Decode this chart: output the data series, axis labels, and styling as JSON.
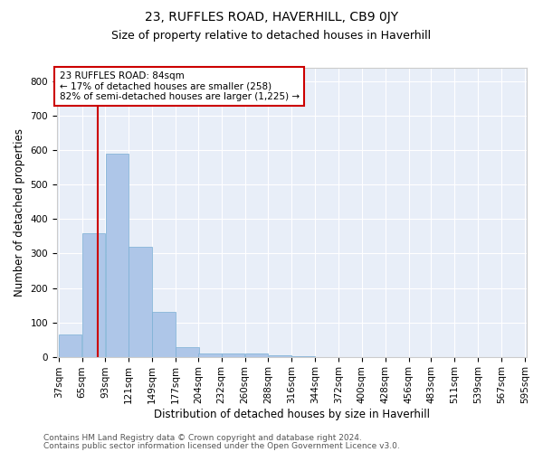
{
  "title1": "23, RUFFLES ROAD, HAVERHILL, CB9 0JY",
  "title2": "Size of property relative to detached houses in Haverhill",
  "xlabel": "Distribution of detached houses by size in Haverhill",
  "ylabel": "Number of detached properties",
  "footer1": "Contains HM Land Registry data © Crown copyright and database right 2024.",
  "footer2": "Contains public sector information licensed under the Open Government Licence v3.0.",
  "annotation_line1": "23 RUFFLES ROAD: 84sqm",
  "annotation_line2": "← 17% of detached houses are smaller (258)",
  "annotation_line3": "82% of semi-detached houses are larger (1,225) →",
  "bin_edges": [
    37,
    65,
    93,
    121,
    149,
    177,
    204,
    232,
    260,
    288,
    316,
    344,
    372,
    400,
    428,
    456,
    483,
    511,
    539,
    567,
    595
  ],
  "bar_values": [
    65,
    360,
    590,
    320,
    130,
    28,
    10,
    10,
    10,
    5,
    2,
    0,
    0,
    0,
    0,
    0,
    0,
    0,
    0,
    0
  ],
  "bar_color": "#aec6e8",
  "bar_edge_color": "#7aafd4",
  "red_line_x": 84,
  "red_line_color": "#cc0000",
  "annotation_box_edge": "#cc0000",
  "annotation_box_face": "#ffffff",
  "ylim": [
    0,
    840
  ],
  "yticks": [
    0,
    100,
    200,
    300,
    400,
    500,
    600,
    700,
    800
  ],
  "bg_color": "#e8eef8",
  "grid_color": "#ffffff",
  "title1_fontsize": 10,
  "title2_fontsize": 9,
  "xlabel_fontsize": 8.5,
  "ylabel_fontsize": 8.5,
  "footer_fontsize": 6.5,
  "tick_fontsize": 7.5,
  "annot_fontsize": 7.5
}
